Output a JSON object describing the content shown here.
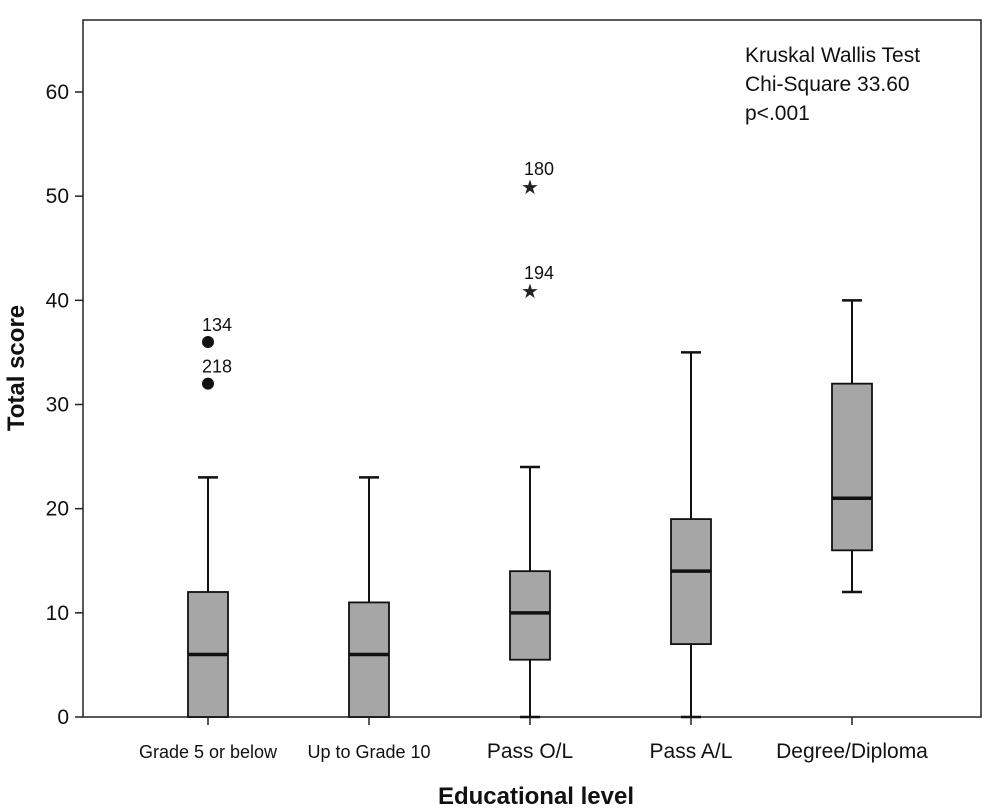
{
  "chart_data": {
    "type": "box",
    "xlabel": "Educational level",
    "ylabel": "Total score",
    "ylim": [
      0,
      60
    ],
    "yticks": [
      "0",
      "10",
      "20",
      "30",
      "40",
      "50",
      "60"
    ],
    "box_color": "#a6a6a6",
    "annotation": [
      "Kruskal Wallis Test",
      "Chi-Square 33.60",
      "p<.001"
    ],
    "categories": [
      "Grade 5 or below",
      "Up to Grade 10",
      "Pass O/L",
      "Pass A/L",
      "Degree/Diploma"
    ],
    "boxes": [
      {
        "min": 0,
        "q1": 0,
        "median": 6,
        "q3": 12,
        "max": 23,
        "outliers": [
          {
            "value": 36,
            "label": "134",
            "marker": "circle"
          },
          {
            "value": 32,
            "label": "218",
            "marker": "circle"
          }
        ]
      },
      {
        "min": 0,
        "q1": 0,
        "median": 6,
        "q3": 11,
        "max": 23,
        "outliers": []
      },
      {
        "min": 0,
        "q1": 5.5,
        "median": 10,
        "q3": 14,
        "max": 24,
        "outliers": [
          {
            "value": 51,
            "label": "180",
            "marker": "star"
          },
          {
            "value": 41,
            "label": "194",
            "marker": "star"
          }
        ]
      },
      {
        "min": 0,
        "q1": 7,
        "median": 14,
        "q3": 19,
        "max": 35,
        "outliers": []
      },
      {
        "min": 12,
        "q1": 16,
        "median": 21,
        "q3": 32,
        "max": 40,
        "outliers": []
      }
    ]
  }
}
